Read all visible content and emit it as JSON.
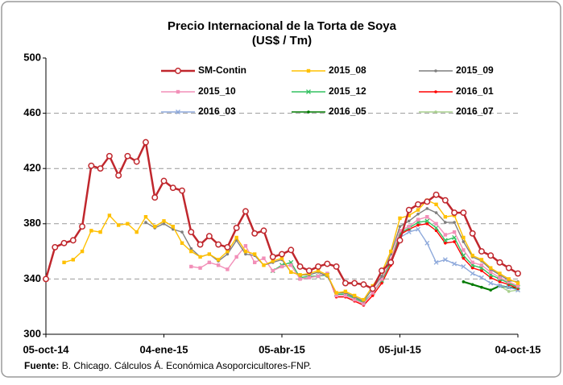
{
  "chart_data": {
    "type": "line",
    "title": "Precio Internacional de la Torta de Soya",
    "subtitle": "(US$ / Tm)",
    "source_label": "Fuente:",
    "source": "B. Chicago. Cálculos Á. Económica Asoporcicultores-FNP.",
    "categories": [
      "05-oct-14",
      null,
      null,
      null,
      null,
      null,
      null,
      null,
      null,
      null,
      null,
      null,
      null,
      "04-ene-15",
      null,
      null,
      null,
      null,
      null,
      null,
      null,
      null,
      null,
      null,
      null,
      null,
      "05-abr-15",
      null,
      null,
      null,
      null,
      null,
      null,
      null,
      null,
      null,
      null,
      null,
      null,
      "05-jul-15",
      null,
      null,
      null,
      null,
      null,
      null,
      null,
      null,
      null,
      null,
      null,
      null,
      "04-oct-15"
    ],
    "ylim": [
      300,
      500
    ],
    "yticks": [
      300,
      340,
      380,
      420,
      460,
      500
    ],
    "grid": true,
    "series": [
      {
        "name": "SM-Contin",
        "color": "#c0272d",
        "values": [
          340,
          363,
          366,
          368,
          378,
          422,
          420,
          429,
          415,
          429,
          425,
          439,
          399,
          411,
          406,
          404,
          374,
          365,
          371,
          365,
          363,
          377,
          389,
          373,
          375,
          356,
          358,
          361,
          349,
          346,
          349,
          351,
          349,
          337,
          337,
          336,
          333,
          346,
          352,
          368,
          390,
          394,
          396,
          401,
          397,
          388,
          388,
          373,
          360,
          357,
          352,
          348,
          344
        ]
      },
      {
        "name": "2015_08",
        "color": "#ffc000",
        "values": [
          null,
          null,
          352,
          354,
          360,
          375,
          374,
          386,
          379,
          380,
          374,
          385,
          378,
          382,
          378,
          366,
          360,
          356,
          358,
          354,
          360,
          370,
          360,
          358,
          350,
          353,
          355,
          345,
          343,
          344,
          346,
          343,
          330,
          331,
          328,
          325,
          335,
          345,
          360,
          384,
          386,
          390,
          397,
          394,
          385,
          386,
          370,
          357,
          354,
          348,
          344,
          340,
          337
        ]
      },
      {
        "name": "2015_09",
        "color": "#7f7f7f",
        "values": [
          null,
          null,
          null,
          null,
          null,
          null,
          null,
          null,
          null,
          null,
          null,
          381,
          377,
          380,
          376,
          374,
          362,
          356,
          358,
          353,
          358,
          368,
          358,
          357,
          350,
          352,
          354,
          345,
          343,
          343,
          345,
          342,
          330,
          330,
          327,
          324,
          333,
          342,
          358,
          378,
          382,
          387,
          391,
          388,
          381,
          381,
          367,
          356,
          353,
          347,
          343,
          339,
          338
        ]
      },
      {
        "name": "2015_10",
        "color": "#f28fb8",
        "values": [
          null,
          null,
          null,
          null,
          null,
          null,
          null,
          null,
          null,
          null,
          null,
          null,
          null,
          null,
          null,
          null,
          349,
          348,
          352,
          350,
          347,
          356,
          364,
          352,
          355,
          346,
          349,
          350,
          340,
          341,
          342,
          344,
          328,
          328,
          325,
          322,
          330,
          340,
          354,
          375,
          378,
          383,
          385,
          380,
          372,
          374,
          361,
          352,
          350,
          345,
          341,
          338,
          335
        ]
      },
      {
        "name": "2015_12",
        "color": "#33c060",
        "values": [
          null,
          null,
          null,
          null,
          null,
          null,
          null,
          null,
          null,
          null,
          null,
          null,
          null,
          null,
          null,
          null,
          null,
          null,
          null,
          null,
          null,
          null,
          null,
          null,
          null,
          346,
          350,
          352,
          341,
          342,
          342,
          343,
          329,
          329,
          326,
          323,
          330,
          339,
          352,
          373,
          377,
          381,
          382,
          377,
          368,
          370,
          357,
          350,
          348,
          343,
          340,
          337,
          334
        ]
      },
      {
        "name": "2016_01",
        "color": "#ff0000",
        "values": [
          null,
          null,
          null,
          null,
          null,
          null,
          null,
          null,
          null,
          null,
          null,
          null,
          null,
          null,
          null,
          null,
          null,
          null,
          null,
          null,
          null,
          null,
          null,
          null,
          null,
          null,
          null,
          null,
          null,
          null,
          null,
          344,
          327,
          327,
          324,
          321,
          328,
          337,
          350,
          372,
          376,
          379,
          380,
          375,
          366,
          367,
          355,
          348,
          346,
          341,
          338,
          336,
          333
        ]
      },
      {
        "name": "2016_03",
        "color": "#8ea9db",
        "values": [
          null,
          null,
          null,
          null,
          null,
          null,
          null,
          null,
          null,
          null,
          null,
          null,
          null,
          null,
          null,
          null,
          null,
          null,
          null,
          null,
          null,
          null,
          null,
          null,
          null,
          null,
          null,
          null,
          null,
          null,
          null,
          null,
          null,
          null,
          null,
          null,
          null,
          null,
          null,
          370,
          374,
          376,
          366,
          352,
          354,
          351,
          349,
          344,
          341,
          337,
          335,
          334,
          332
        ]
      },
      {
        "name": "2016_05",
        "color": "#007a00",
        "values": [
          null,
          null,
          null,
          null,
          null,
          null,
          null,
          null,
          null,
          null,
          null,
          null,
          null,
          null,
          null,
          null,
          null,
          null,
          null,
          null,
          null,
          null,
          null,
          null,
          null,
          null,
          null,
          null,
          null,
          null,
          null,
          null,
          null,
          null,
          null,
          null,
          null,
          null,
          null,
          null,
          null,
          null,
          null,
          null,
          null,
          null,
          338,
          336,
          334,
          332,
          335,
          334,
          333
        ]
      },
      {
        "name": "2016_07",
        "color": "#a9d08e",
        "values": [
          null,
          null,
          null,
          null,
          null,
          null,
          null,
          null,
          null,
          null,
          null,
          null,
          null,
          null,
          null,
          null,
          null,
          null,
          null,
          null,
          null,
          null,
          null,
          null,
          null,
          null,
          null,
          null,
          null,
          null,
          null,
          null,
          null,
          null,
          null,
          null,
          null,
          null,
          null,
          null,
          null,
          null,
          null,
          null,
          null,
          null,
          null,
          null,
          null,
          null,
          335,
          331,
          332
        ]
      }
    ]
  }
}
